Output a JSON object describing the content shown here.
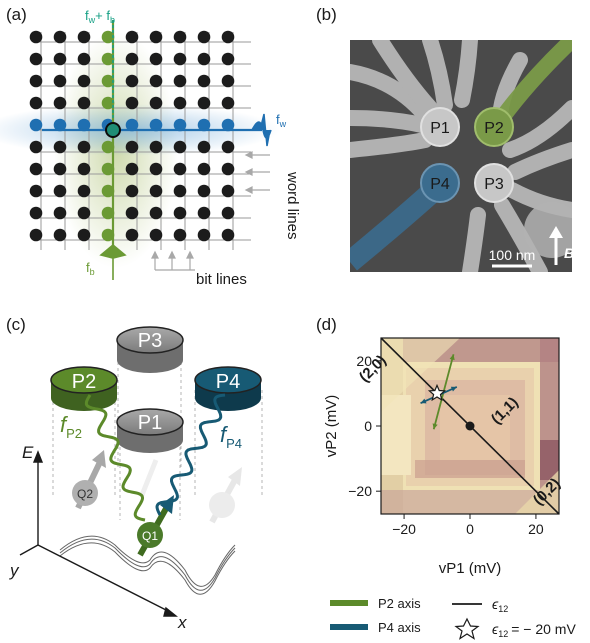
{
  "panels": {
    "a": {
      "label": "(a)",
      "freq_top": "f",
      "freq_top_sub": "w",
      "freq_top_plus": "+ f",
      "freq_top_sub2": "b",
      "freq_right": "f",
      "freq_right_sub": "w",
      "freq_bottom": "f",
      "freq_bottom_sub": "b",
      "word_lines": "word lines",
      "bit_lines": "bit lines",
      "colors": {
        "green": "#6b9a34",
        "blue": "#1f6fb1",
        "teal": "#16a085",
        "dot": "#1c1c1c"
      }
    },
    "b": {
      "label": "(b)",
      "gates": [
        "P1",
        "P2",
        "P3",
        "P4"
      ],
      "scale_bar": "100 nm",
      "field": "B",
      "colors": {
        "bg": "#4c4c4c",
        "gate": "#c9c9c9",
        "green": "#7a9a48",
        "blue": "#3b6c8e"
      }
    },
    "c": {
      "label": "(c)",
      "plungers": [
        "P1",
        "P2",
        "P3",
        "P4"
      ],
      "axis_E": "E",
      "axis_x": "x",
      "axis_y": "y",
      "f_P2": "f",
      "f_P2_sub": "P2",
      "f_P4": "f",
      "f_P4_sub": "P4",
      "qubits": [
        "Q1",
        "Q2"
      ],
      "colors": {
        "green": "#5c8a2a",
        "teal": "#175a74",
        "grey": "#8c8c8c"
      }
    },
    "d": {
      "label": "(d)",
      "xlabel": "vP1 (mV)",
      "ylabel": "vP2 (mV)",
      "regions": [
        "(2,0)",
        "(1,1)",
        "(0,2)"
      ],
      "legend": {
        "p2_axis": "P2 axis",
        "p4_axis": "P4 axis",
        "eps": "ϵ",
        "eps_sub": "12",
        "eps_point": "ϵ",
        "eps_point_sub": "12",
        "eps_point_value": "= − 20 mV"
      },
      "colors": {
        "green": "#5c8a2a",
        "teal": "#175a74",
        "map_light": "#efe1b4",
        "map_dark": "#a9737a"
      }
    }
  },
  "chart_data": {
    "type": "heatmap",
    "title": "",
    "xlabel": "vP1 (mV)",
    "ylabel": "vP2 (mV)",
    "xlim": [
      -27,
      27
    ],
    "ylim": [
      -27,
      27
    ],
    "xticks": [
      -20,
      0,
      20
    ],
    "yticks": [
      -20,
      0,
      20
    ],
    "regions": [
      "(2,0)",
      "(1,1)",
      "(0,2)"
    ],
    "series": [
      {
        "name": "ϵ12",
        "x": [
          -27,
          27
        ],
        "y": [
          27,
          -27
        ]
      },
      {
        "name": "P2 axis",
        "x": [
          -11,
          -5
        ],
        "y": [
          -1,
          22
        ]
      },
      {
        "name": "P4 axis",
        "x": [
          -15,
          -4
        ],
        "y": [
          7,
          12
        ]
      }
    ],
    "markers": [
      {
        "name": "ϵ12 = − 20 mV",
        "x": -10,
        "y": 10
      },
      {
        "name": "(1,1)",
        "x": 0,
        "y": 0
      }
    ]
  }
}
